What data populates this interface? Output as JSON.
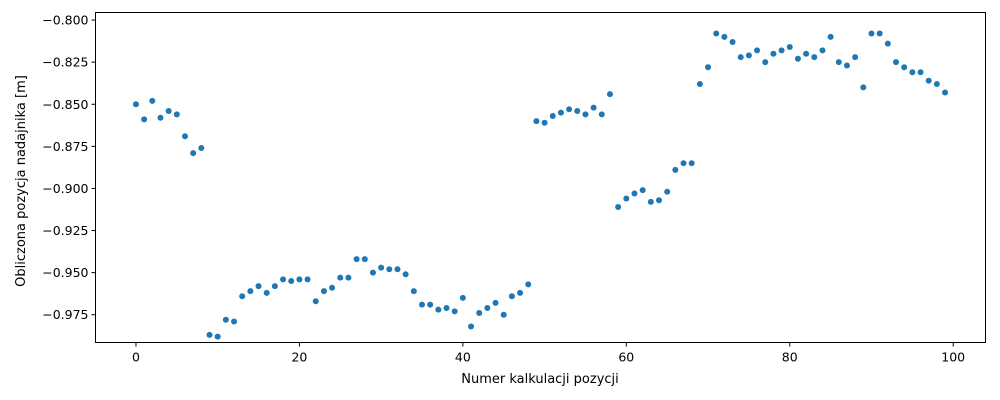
{
  "chart_data": {
    "type": "scatter",
    "title": "",
    "xlabel": "Numer kalkulacji pozycji",
    "ylabel": "Obliczona pozycja nadajnika [m]",
    "xlim": [
      -4.95,
      103.95
    ],
    "ylim": [
      -0.9915,
      -0.7955
    ],
    "xticks": [
      0,
      20,
      40,
      60,
      80,
      100
    ],
    "yticks": [
      -0.975,
      -0.95,
      -0.925,
      -0.9,
      -0.875,
      -0.85,
      -0.825,
      -0.8
    ],
    "xtick_labels": [
      "0",
      "20",
      "40",
      "60",
      "80",
      "100"
    ],
    "ytick_labels": [
      "−0.975",
      "−0.950",
      "−0.925",
      "−0.900",
      "−0.875",
      "−0.850",
      "−0.825",
      "−0.800"
    ],
    "grid": false,
    "marker_color": "#1f77b4",
    "series": [
      {
        "x": [
          0,
          1,
          2,
          3,
          4,
          5,
          6,
          7,
          8,
          9,
          10,
          11,
          12,
          13,
          14,
          15,
          16,
          17,
          18,
          19,
          20,
          21,
          22,
          23,
          24,
          25,
          26,
          27,
          28,
          29,
          30,
          31,
          32,
          33,
          34,
          35,
          36,
          37,
          38,
          39,
          40,
          41,
          42,
          43,
          44,
          45,
          46,
          47,
          48,
          49,
          50,
          51,
          52,
          53,
          54,
          55,
          56,
          57,
          58,
          59,
          60,
          61,
          62,
          63,
          64,
          65,
          66,
          67,
          68,
          69,
          70,
          71,
          72,
          73,
          74,
          75,
          76,
          77,
          78,
          79,
          80,
          81,
          82,
          83,
          84,
          85,
          86,
          87,
          88,
          89,
          90,
          91,
          92,
          93,
          94,
          95,
          96,
          97,
          98,
          99
        ],
        "y": [
          -0.85,
          -0.859,
          -0.848,
          -0.858,
          -0.854,
          -0.856,
          -0.869,
          -0.879,
          -0.876,
          -0.987,
          -0.988,
          -0.978,
          -0.979,
          -0.964,
          -0.961,
          -0.958,
          -0.962,
          -0.958,
          -0.954,
          -0.955,
          -0.954,
          -0.954,
          -0.967,
          -0.961,
          -0.959,
          -0.953,
          -0.953,
          -0.942,
          -0.942,
          -0.95,
          -0.947,
          -0.948,
          -0.948,
          -0.951,
          -0.961,
          -0.969,
          -0.969,
          -0.972,
          -0.971,
          -0.973,
          -0.965,
          -0.982,
          -0.974,
          -0.971,
          -0.968,
          -0.975,
          -0.964,
          -0.962,
          -0.957,
          -0.86,
          -0.861,
          -0.857,
          -0.855,
          -0.853,
          -0.854,
          -0.856,
          -0.852,
          -0.856,
          -0.844,
          -0.911,
          -0.906,
          -0.903,
          -0.901,
          -0.908,
          -0.907,
          -0.902,
          -0.889,
          -0.885,
          -0.885,
          -0.838,
          -0.828,
          -0.808,
          -0.81,
          -0.813,
          -0.822,
          -0.821,
          -0.818,
          -0.825,
          -0.82,
          -0.818,
          -0.816,
          -0.823,
          -0.82,
          -0.822,
          -0.818,
          -0.81,
          -0.825,
          -0.827,
          -0.822,
          -0.84,
          -0.808,
          -0.808,
          -0.814,
          -0.825,
          -0.828,
          -0.831,
          -0.831,
          -0.836,
          -0.838,
          -0.843
        ]
      }
    ]
  }
}
